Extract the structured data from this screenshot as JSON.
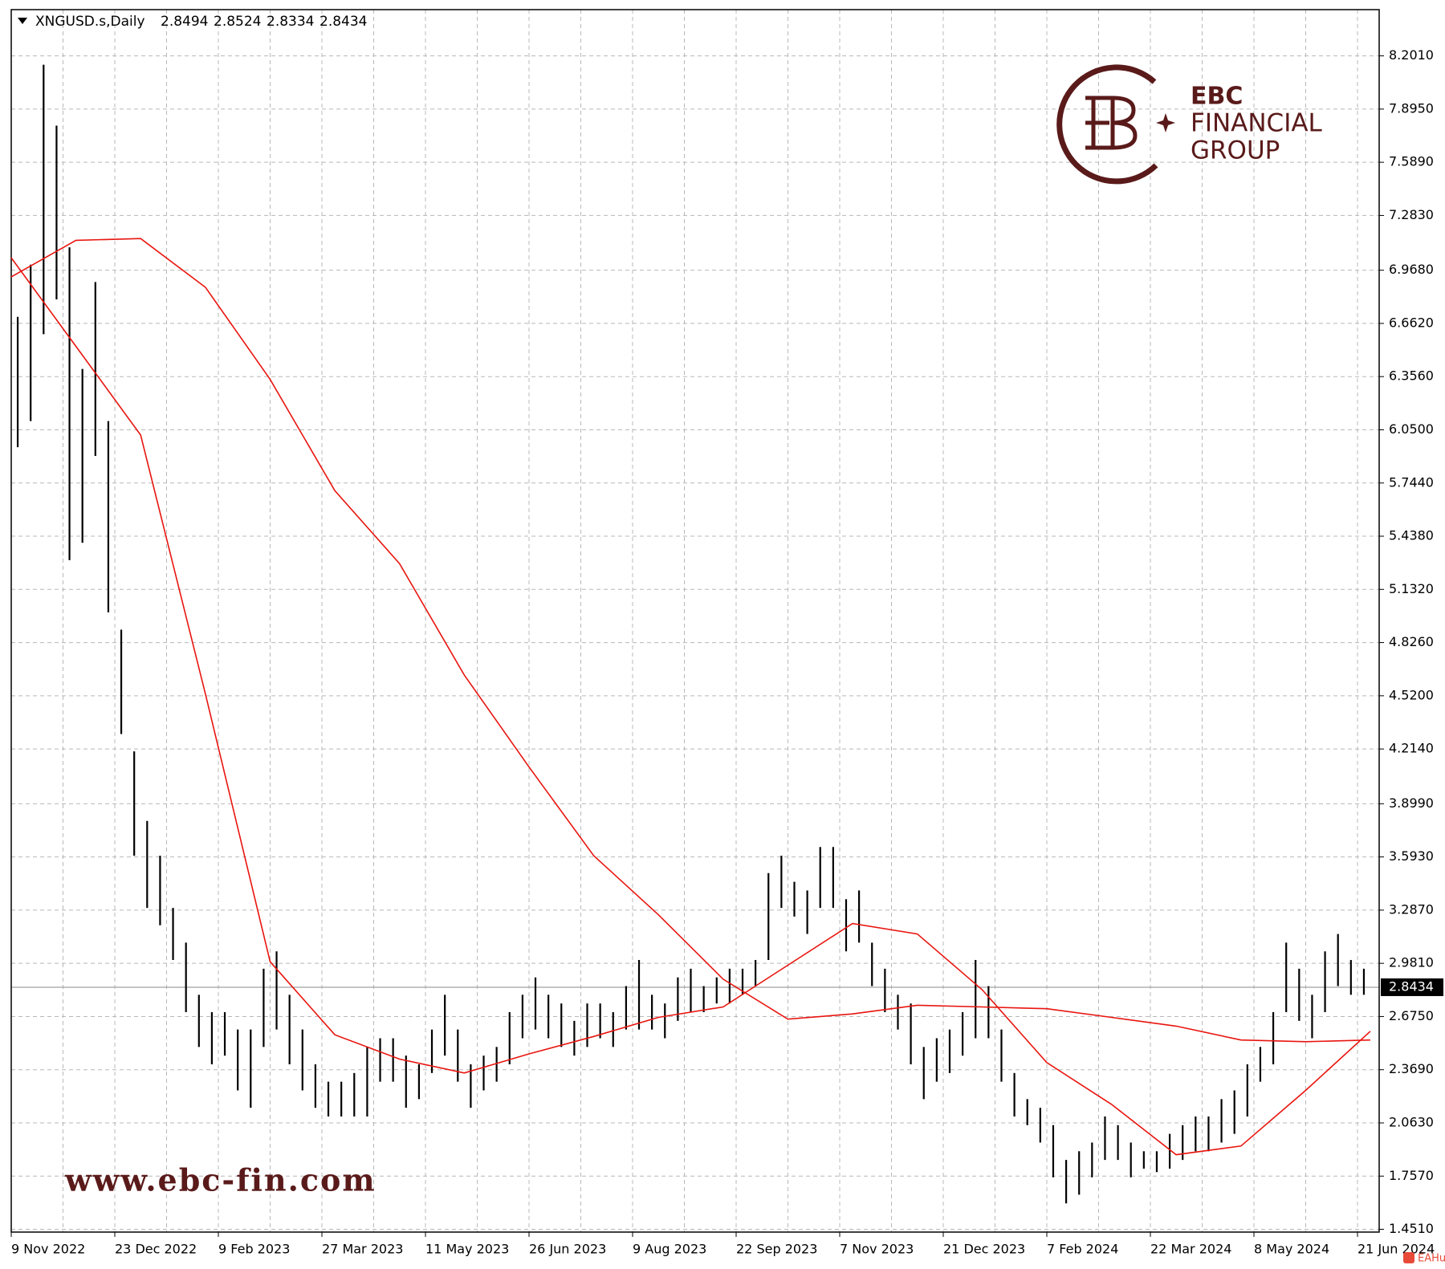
{
  "chart_data": {
    "type": "range-bars",
    "symbol": "XNGUSD.s,Daily",
    "ohlc": [
      2.8494,
      2.8524,
      2.8334,
      2.8434
    ],
    "current_price": 2.8434,
    "grid": true,
    "bar_color": "#000000",
    "ylim": [
      1.435,
      8.467
    ],
    "yticks": [
      {
        "value": 8.201,
        "label": "8.2010"
      },
      {
        "value": 7.895,
        "label": "7.8950"
      },
      {
        "value": 7.589,
        "label": "7.5890"
      },
      {
        "value": 7.283,
        "label": "7.2830"
      },
      {
        "value": 6.968,
        "label": "6.9680"
      },
      {
        "value": 6.662,
        "label": "6.6620"
      },
      {
        "value": 6.356,
        "label": "6.3560"
      },
      {
        "value": 6.05,
        "label": "6.0500"
      },
      {
        "value": 5.744,
        "label": "5.7440"
      },
      {
        "value": 5.438,
        "label": "5.4380"
      },
      {
        "value": 5.132,
        "label": "5.1320"
      },
      {
        "value": 4.826,
        "label": "4.8260"
      },
      {
        "value": 4.52,
        "label": "4.5200"
      },
      {
        "value": 4.214,
        "label": "4.2140"
      },
      {
        "value": 3.899,
        "label": "3.8990"
      },
      {
        "value": 3.593,
        "label": "3.5930"
      },
      {
        "value": 3.287,
        "label": "3.2870"
      },
      {
        "value": 2.981,
        "label": "2.9810"
      },
      {
        "value": 2.675,
        "label": "2.6750"
      },
      {
        "value": 2.369,
        "label": "2.3690"
      },
      {
        "value": 2.063,
        "label": "2.0630"
      },
      {
        "value": 1.757,
        "label": "1.7570"
      },
      {
        "value": 1.451,
        "label": "1.4510"
      }
    ],
    "x_labels": [
      "9 Nov 2022",
      "23 Dec 2022",
      "9 Feb 2023",
      "27 Mar 2023",
      "11 May 2023",
      "26 Jun 2023",
      "9 Aug 2023",
      "22 Sep 2023",
      "7 Nov 2023",
      "21 Dec 2023",
      "7 Feb 2024",
      "22 Mar 2024",
      "8 May 2024",
      "21 Jun 2024"
    ],
    "bars": {
      "high": [
        6.7,
        7.0,
        8.15,
        7.8,
        7.1,
        6.4,
        6.9,
        6.1,
        4.9,
        4.2,
        3.8,
        3.6,
        3.3,
        3.1,
        2.8,
        2.7,
        2.7,
        2.6,
        2.6,
        2.95,
        3.05,
        2.8,
        2.6,
        2.4,
        2.3,
        2.3,
        2.35,
        2.5,
        2.55,
        2.55,
        2.45,
        2.4,
        2.6,
        2.8,
        2.6,
        2.4,
        2.45,
        2.5,
        2.7,
        2.8,
        2.9,
        2.8,
        2.75,
        2.65,
        2.75,
        2.75,
        2.7,
        2.85,
        3.0,
        2.8,
        2.75,
        2.9,
        2.95,
        2.85,
        2.9,
        2.95,
        2.95,
        3.0,
        3.5,
        3.6,
        3.45,
        3.4,
        3.65,
        3.65,
        3.35,
        3.4,
        3.1,
        2.95,
        2.8,
        2.75,
        2.5,
        2.55,
        2.6,
        2.7,
        3.0,
        2.85,
        2.6,
        2.35,
        2.2,
        2.15,
        2.05,
        1.85,
        1.9,
        1.95,
        2.1,
        2.05,
        1.95,
        1.9,
        1.9,
        2.0,
        2.05,
        2.1,
        2.1,
        2.2,
        2.25,
        2.4,
        2.5,
        2.7,
        3.1,
        2.95,
        2.8,
        3.05,
        3.15,
        3.0,
        2.95
      ],
      "low": [
        5.95,
        6.1,
        6.6,
        6.8,
        5.3,
        5.4,
        5.9,
        5.0,
        4.3,
        3.6,
        3.3,
        3.2,
        3.0,
        2.7,
        2.5,
        2.4,
        2.45,
        2.25,
        2.15,
        2.5,
        2.6,
        2.4,
        2.25,
        2.15,
        2.1,
        2.1,
        2.1,
        2.1,
        2.3,
        2.3,
        2.15,
        2.2,
        2.35,
        2.45,
        2.3,
        2.15,
        2.25,
        2.3,
        2.4,
        2.55,
        2.6,
        2.55,
        2.5,
        2.45,
        2.5,
        2.55,
        2.5,
        2.6,
        2.6,
        2.6,
        2.55,
        2.65,
        2.7,
        2.7,
        2.75,
        2.75,
        2.8,
        2.85,
        3.0,
        3.3,
        3.25,
        3.15,
        3.3,
        3.3,
        3.05,
        3.1,
        2.85,
        2.7,
        2.6,
        2.4,
        2.2,
        2.3,
        2.35,
        2.45,
        2.55,
        2.55,
        2.3,
        2.1,
        2.05,
        1.95,
        1.75,
        1.6,
        1.65,
        1.75,
        1.85,
        1.85,
        1.75,
        1.8,
        1.78,
        1.8,
        1.85,
        1.9,
        1.9,
        1.95,
        2.0,
        2.1,
        2.3,
        2.4,
        2.7,
        2.65,
        2.55,
        2.7,
        2.85,
        2.8,
        2.8
      ]
    },
    "moving_averages": [
      {
        "color": "#e8150f",
        "values": [
          6.93,
          7.14,
          7.15,
          6.87,
          6.34,
          5.7,
          5.28,
          4.64,
          4.11,
          3.6,
          3.26,
          2.89,
          2.66,
          2.69,
          2.74,
          2.73,
          2.72,
          2.67,
          2.62,
          2.54,
          2.53,
          2.54
        ]
      },
      {
        "color": "#e8150f",
        "values": [
          7.04,
          6.53,
          6.02,
          4.53,
          2.99,
          2.57,
          2.43,
          2.35,
          2.46,
          2.56,
          2.67,
          2.73,
          2.97,
          3.21,
          3.15,
          2.83,
          2.41,
          2.17,
          1.88,
          1.93,
          2.25,
          2.59
        ]
      }
    ]
  },
  "logo": {
    "line1": "EBC",
    "line2": "FINANCIAL",
    "line3": "GROUP"
  },
  "watermark": "www.ebc-fin.com",
  "badge": "EAHub"
}
